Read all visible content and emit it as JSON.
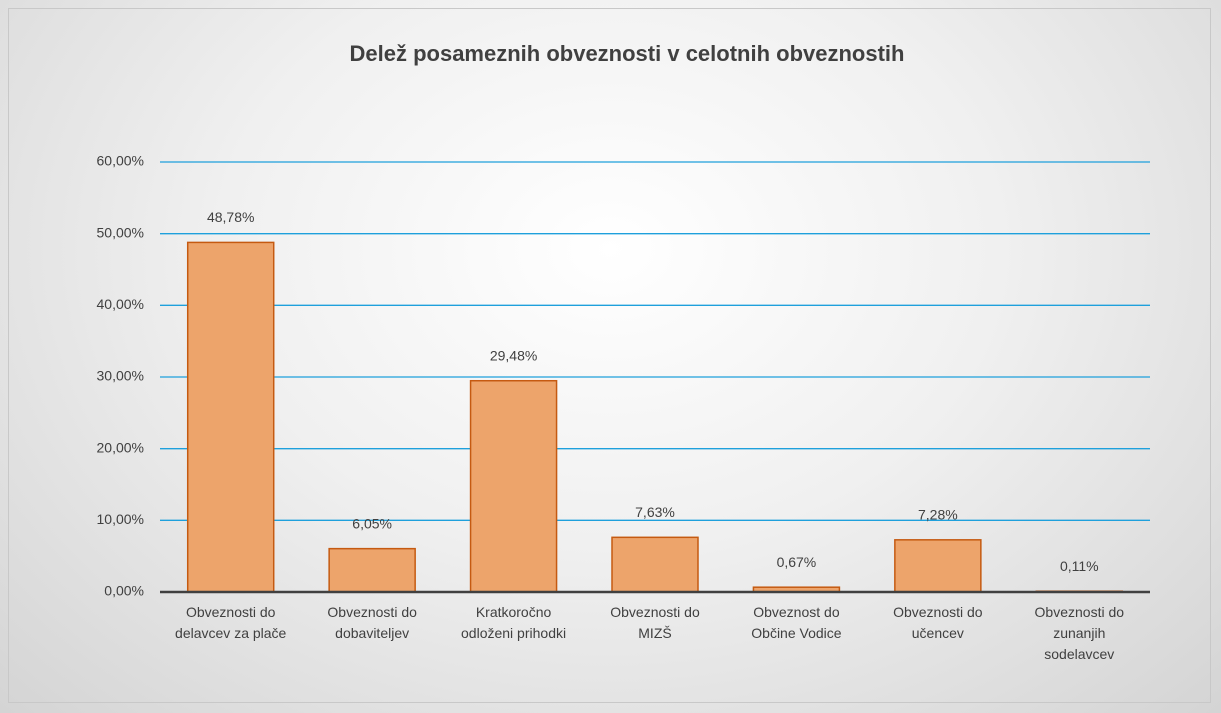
{
  "chart_data": {
    "type": "bar",
    "title": "Delež posameznih obveznosti v celotnih obveznostih",
    "categories": [
      "Obveznosti do delavcev za plače",
      "Obveznosti do dobaviteljev",
      "Kratkoročno odloženi prihodki",
      "Obveznosti do MIZŠ",
      "Obveznost do Občine Vodice",
      "Obveznosti do učencev",
      "Obveznosti do zunanjih sodelavcev"
    ],
    "values": [
      48.78,
      6.05,
      29.48,
      7.63,
      0.67,
      7.28,
      0.11
    ],
    "value_labels": [
      "48,78%",
      "6,05%",
      "29,48%",
      "7,63%",
      "0,67%",
      "7,28%",
      "0,11%"
    ],
    "color": "#eda46b",
    "ylim": [
      0,
      60
    ],
    "yticks": [
      {
        "value": 0,
        "label": "0,00%"
      },
      {
        "value": 10,
        "label": "10,00%"
      },
      {
        "value": 20,
        "label": "20,00%"
      },
      {
        "value": 30,
        "label": "30,00%"
      },
      {
        "value": 40,
        "label": "40,00%"
      },
      {
        "value": 50,
        "label": "50,00%"
      },
      {
        "value": 60,
        "label": "60,00%"
      }
    ],
    "grid": true
  }
}
